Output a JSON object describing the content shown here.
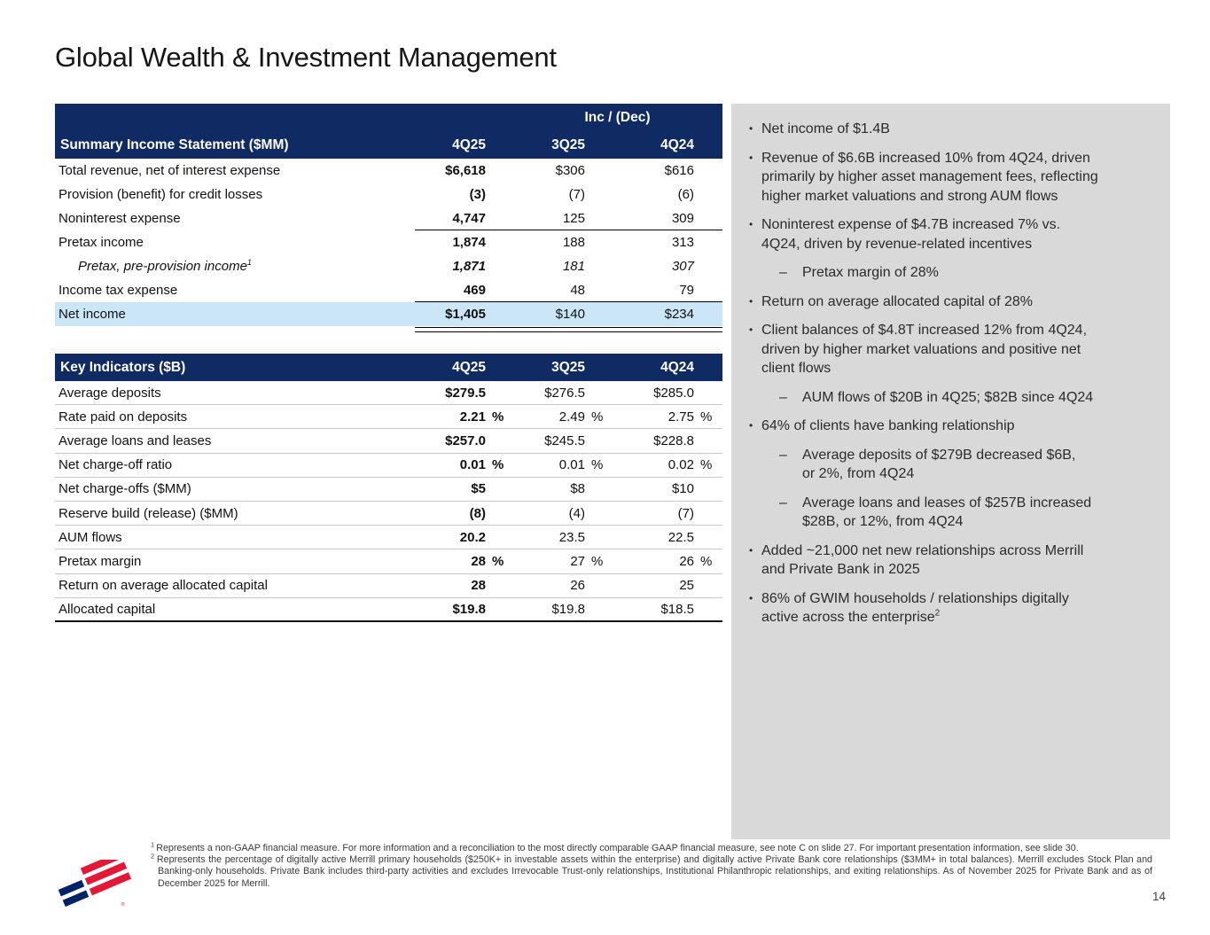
{
  "slide": {
    "title": "Global Wealth & Investment Management",
    "page_number": "14"
  },
  "colors": {
    "navy": "#102a64",
    "logo_red": "#e31837",
    "logo_blue": "#012169",
    "highlight_blue": "#cbe7f7",
    "panel_gray": "#d9d9d9"
  },
  "percent_sign": "%",
  "income_table": {
    "group_header": "Inc / (Dec)",
    "title": "Summary Income Statement ($MM)",
    "columns": [
      "4Q25",
      "3Q25",
      "4Q24"
    ],
    "rows": [
      {
        "label": "Total revenue, net of interest expense",
        "values": [
          "$6,618",
          "$306",
          "$616"
        ]
      },
      {
        "label": "Provision (benefit) for credit losses",
        "values": [
          "(3)",
          "(7)",
          "(6)"
        ]
      },
      {
        "label": "Noninterest expense",
        "values": [
          "4,747",
          "125",
          "309"
        ],
        "rule_below": "single"
      },
      {
        "label": "Pretax income",
        "values": [
          "1,874",
          "188",
          "313"
        ]
      },
      {
        "label": "Pretax, pre-provision income",
        "sup": "1",
        "italic": true,
        "indent": true,
        "values": [
          "1,871",
          "181",
          "307"
        ]
      },
      {
        "label": "Income tax expense",
        "values": [
          "469",
          "48",
          "79"
        ],
        "rule_below": "single"
      },
      {
        "label": "Net income",
        "highlight": true,
        "values": [
          "$1,405",
          "$140",
          "$234"
        ],
        "rule_below": "double"
      }
    ]
  },
  "indicators_table": {
    "title": "Key Indicators ($B)",
    "columns": [
      "4Q25",
      "3Q25",
      "4Q24"
    ],
    "rows": [
      {
        "label": "Average deposits",
        "values": [
          "$279.5",
          "$276.5",
          "$285.0"
        ]
      },
      {
        "label": "Rate paid on deposits",
        "values": [
          "2.21",
          "2.49",
          "2.75"
        ],
        "pct": true
      },
      {
        "label": "Average loans and leases",
        "values": [
          "$257.0",
          "$245.5",
          "$228.8"
        ]
      },
      {
        "label": "Net charge-off ratio",
        "values": [
          "0.01",
          "0.01",
          "0.02"
        ],
        "pct": true
      },
      {
        "label": "Net charge-offs ($MM)",
        "values": [
          "$5",
          "$8",
          "$10"
        ]
      },
      {
        "label": "Reserve build (release) ($MM)",
        "values": [
          "(8)",
          "(4)",
          "(7)"
        ]
      },
      {
        "label": "AUM flows",
        "values": [
          "20.2",
          "23.5",
          "22.5"
        ]
      },
      {
        "label": "Pretax margin",
        "values": [
          "28",
          "27",
          "26"
        ],
        "pct": true
      },
      {
        "label": "Return on average allocated capital",
        "values": [
          "28",
          "26",
          "25"
        ]
      },
      {
        "label": "Allocated capital",
        "values": [
          "$19.8",
          "$19.8",
          "$18.5"
        ],
        "rule_below": "strong"
      }
    ]
  },
  "highlights": {
    "dot": "•",
    "dash": "–",
    "bullets": [
      {
        "level": 0,
        "text": "Net income of $1.4B"
      },
      {
        "level": 0,
        "text": "Revenue of $6.6B increased 10% from 4Q24, driven\nprimarily by higher asset management fees, reflecting\nhigher market valuations and strong AUM flows"
      },
      {
        "level": 0,
        "text": "Noninterest expense of $4.7B increased 7% vs.\n4Q24, driven by revenue-related incentives"
      },
      {
        "level": 1,
        "text": "Pretax margin of 28%"
      },
      {
        "level": 0,
        "text": "Return on average allocated capital of 28%"
      },
      {
        "level": 0,
        "text": "Client balances of $4.8T increased 12% from 4Q24,\ndriven by higher market valuations and positive net\nclient flows"
      },
      {
        "level": 1,
        "text": "AUM flows of $20B in 4Q25; $82B since 4Q24"
      },
      {
        "level": 0,
        "text": "64% of clients have banking relationship"
      },
      {
        "level": 1,
        "text": "Average deposits of $279B decreased $6B,\nor 2%, from 4Q24"
      },
      {
        "level": 1,
        "text": "Average loans and leases of $257B increased\n$28B, or 12%, from 4Q24"
      },
      {
        "level": 0,
        "text": "Added ~21,000 net new relationships across Merrill\nand Private Bank in 2025"
      },
      {
        "level": 0,
        "text": "86% of GWIM households / relationships digitally\nactive across the enterprise",
        "sup": "2"
      }
    ]
  },
  "footnotes": [
    {
      "sup": "1",
      "text": "Represents a non-GAAP financial measure. For more information and a reconciliation to the most directly comparable GAAP financial measure, see note C on slide 27. For important presentation information, see slide 30."
    },
    {
      "sup": "2",
      "text": "Represents the percentage of digitally active Merrill primary households ($250K+ in investable assets within the enterprise) and digitally active Private Bank core relationships ($3MM+ in total balances). Merrill excludes Stock Plan and Banking-only households. Private Bank includes third-party activities and excludes Irrevocable Trust-only relationships, Institutional Philanthropic relationships, and exiting relationships. As of November 2025 for Private Bank and as of December 2025 for Merrill."
    }
  ]
}
